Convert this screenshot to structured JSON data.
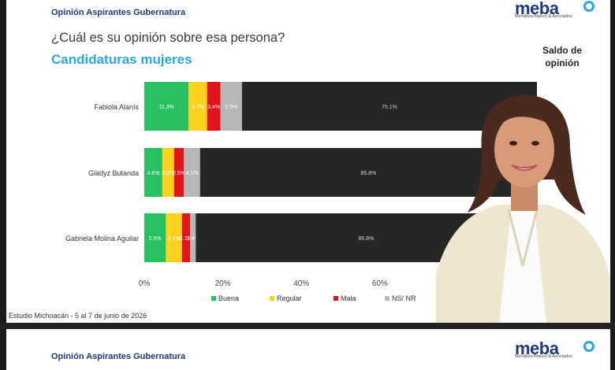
{
  "header": {
    "title": "Opinión Aspirantes Gubernatura"
  },
  "logo": {
    "name": "meba",
    "tagline": "Mendoza Blanco & Asociados"
  },
  "question": "¿Cuál es su opinión sobre esa persona?",
  "subtitle": "Candidaturas mujeres",
  "saldo_label": "Saldo de opinión",
  "footer": "Estudio Michoacán - 5 al 7 de junio de 2026",
  "bottom_header": {
    "title": "Opinión Aspirantes Gubernatura"
  },
  "colors": {
    "buena": "#27c160",
    "regular": "#ffd21f",
    "mala": "#e0151c",
    "nsnr": "#b7b7b7",
    "rest": "#262626"
  },
  "chart_data": {
    "type": "bar",
    "orientation": "horizontal",
    "stacked": true,
    "categories": [
      "Fabiola Alanís",
      "Gladyz Butanda",
      "Gabriela Molina Aguilar"
    ],
    "series": [
      {
        "name": "Buena",
        "values": [
          11.3,
          4.6,
          5.5
        ],
        "labels": [
          "11.3%",
          "4.6%",
          "5.5%"
        ]
      },
      {
        "name": "Regular",
        "values": [
          4.7,
          3.0,
          4.1
        ],
        "labels": [
          "4.7%",
          "3.0%",
          "4.1%"
        ]
      },
      {
        "name": "Mala",
        "values": [
          3.4,
          2.5,
          2.1
        ],
        "labels": [
          "3.4%",
          "2.5%",
          "2.1%"
        ]
      },
      {
        "name": "NS/ NR",
        "values": [
          5.5,
          4.1,
          1.4
        ],
        "labels": [
          "5.5%",
          "4.1%",
          "1.4%"
        ]
      },
      {
        "name": "",
        "values": [
          75.1,
          85.8,
          86.8
        ],
        "labels": [
          "75.1%",
          "85.8%",
          "86.8%"
        ]
      }
    ],
    "xlim": [
      0,
      100
    ],
    "ticks": [
      "0%",
      "20%",
      "40%",
      "60%"
    ],
    "tick_values": [
      0,
      20,
      40,
      60
    ],
    "legend": [
      "Buena",
      "Regular",
      "Mala",
      "NS/ NR"
    ],
    "legend_position": "bottom",
    "grid": false
  }
}
